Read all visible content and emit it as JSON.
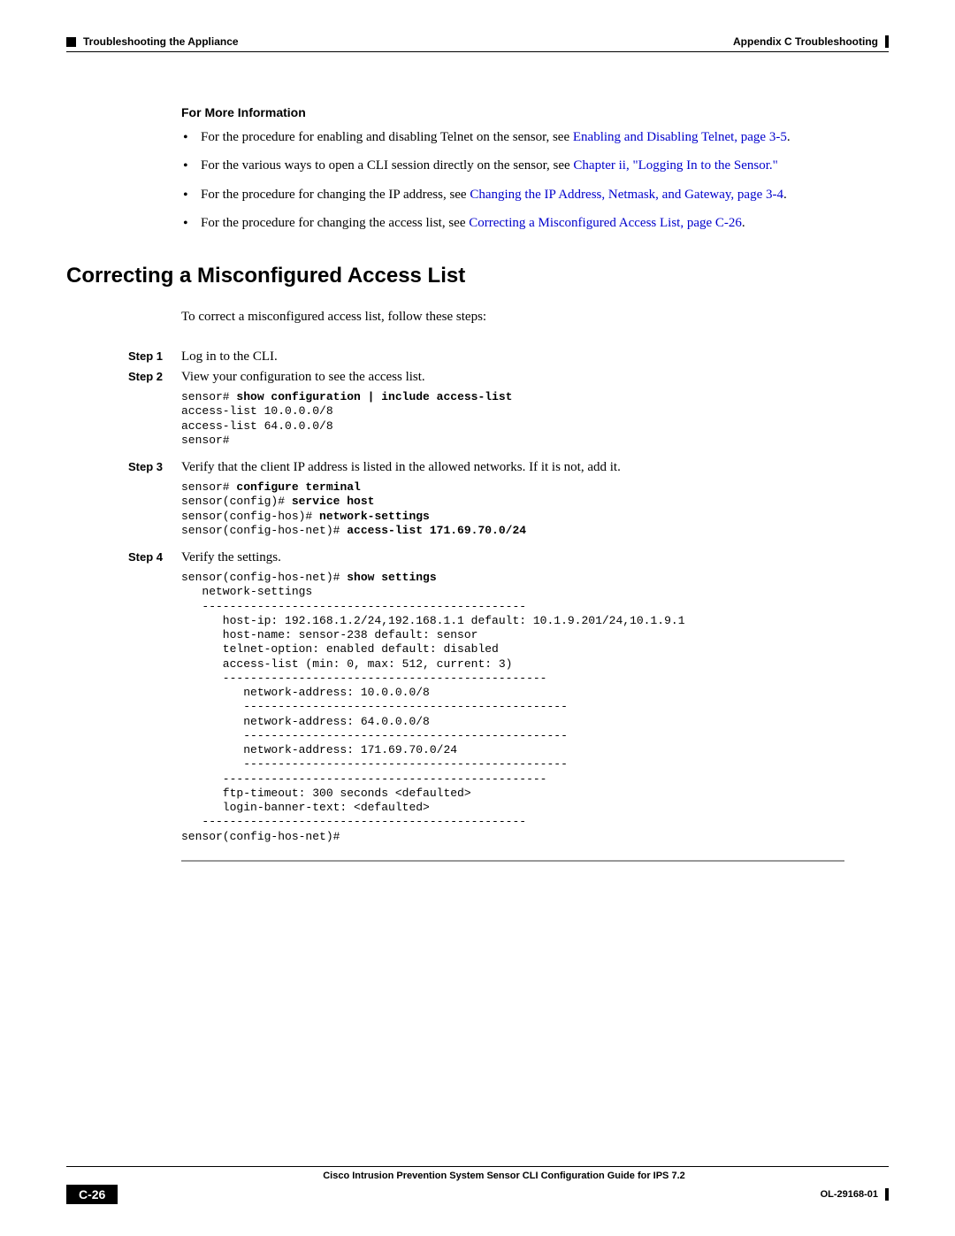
{
  "header": {
    "left_marker_icon": "square",
    "left_text": "Troubleshooting the Appliance",
    "right_text": "Appendix C      Troubleshooting",
    "right_marker_icon": "bar"
  },
  "for_more_info": {
    "heading": "For More Information",
    "items": [
      {
        "pre": "For the procedure for enabling and disabling Telnet on the sensor, see ",
        "link": "Enabling and Disabling Telnet, page 3-5",
        "post": "."
      },
      {
        "pre": "For the various ways to open a CLI session directly on the sensor, see ",
        "link": "Chapter ii, \"Logging In to the Sensor.\"",
        "post": ""
      },
      {
        "pre": "For the procedure for changing the IP address, see ",
        "link": "Changing the IP Address, Netmask, and Gateway, page 3-4",
        "post": "."
      },
      {
        "pre": "For the procedure for changing the access list, see ",
        "link": "Correcting a Misconfigured Access List, page C-26",
        "post": "."
      }
    ]
  },
  "section": {
    "title": "Correcting a Misconfigured Access List",
    "intro": "To correct a misconfigured access list, follow these steps:"
  },
  "steps": {
    "s1": {
      "label": "Step 1",
      "text": "Log in to the CLI."
    },
    "s2": {
      "label": "Step 2",
      "text": "View your configuration to see the access list."
    },
    "s3": {
      "label": "Step 3",
      "text": "Verify that the client IP address is listed in the allowed networks. If it is not, add it."
    },
    "s4": {
      "label": "Step 4",
      "text": "Verify the settings."
    }
  },
  "code": {
    "block1_prompt": "sensor# ",
    "block1_cmd": "show configuration | include access-list",
    "block1_out1": "access-list 10.0.0.0/8",
    "block1_out2": "access-list 64.0.0.0/8",
    "block1_out3": "sensor#",
    "block2_l1_p": "sensor# ",
    "block2_l1_c": "configure terminal",
    "block2_l2_p": "sensor(config)# ",
    "block2_l2_c": "service host",
    "block2_l3_p": "sensor(config-hos)# ",
    "block2_l3_c": "network-settings",
    "block2_l4_p": "sensor(config-hos-net)# ",
    "block2_l4_c": "access-list 171.69.70.0/24",
    "block3_l1_p": "sensor(config-hos-net)# ",
    "block3_l1_c": "show settings",
    "block3_body": "   network-settings\n   -----------------------------------------------\n      host-ip: 192.168.1.2/24,192.168.1.1 default: 10.1.9.201/24,10.1.9.1\n      host-name: sensor-238 default: sensor\n      telnet-option: enabled default: disabled\n      access-list (min: 0, max: 512, current: 3)\n      -----------------------------------------------\n         network-address: 10.0.0.0/8\n         -----------------------------------------------\n         network-address: 64.0.0.0/8\n         -----------------------------------------------\n         network-address: 171.69.70.0/24\n         -----------------------------------------------\n      -----------------------------------------------\n      ftp-timeout: 300 seconds <defaulted>\n      login-banner-text: <defaulted>\n   -----------------------------------------------\nsensor(config-hos-net)#"
  },
  "footer": {
    "guide_title": "Cisco Intrusion Prevention System Sensor CLI Configuration Guide for IPS 7.2",
    "page_number": "C-26",
    "doc_id": "OL-29168-01"
  },
  "style": {
    "link_color": "#0000cc",
    "text_color": "#000000",
    "background": "#ffffff",
    "rule_gray": "#999999",
    "body_fontsize": 15,
    "code_fontsize": 13,
    "heading_fontsize": 24
  }
}
